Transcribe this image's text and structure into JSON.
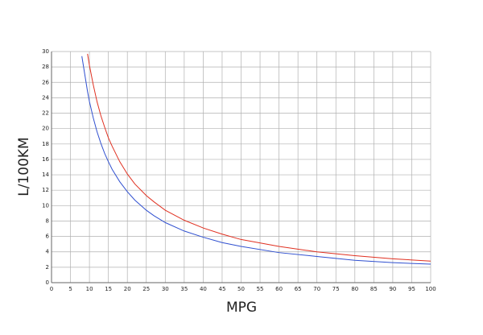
{
  "chart_data": {
    "type": "line",
    "xlabel": "MPG",
    "ylabel": "L/100KM",
    "x": [
      8,
      9.5,
      10,
      11,
      12,
      13,
      14,
      15,
      16,
      18,
      20,
      22,
      25,
      27,
      30,
      35,
      40,
      45,
      50,
      60,
      70,
      80,
      90,
      100
    ],
    "series": [
      {
        "color": "#3050d0",
        "values": [
          29.4,
          24.8,
          23.5,
          21.4,
          19.6,
          18.1,
          16.8,
          15.7,
          14.7,
          13.1,
          11.8,
          10.7,
          9.4,
          8.7,
          7.8,
          6.7,
          5.9,
          5.2,
          4.7,
          3.9,
          3.4,
          2.9,
          2.6,
          2.4
        ]
      },
      {
        "color": "#e03020",
        "values": [
          null,
          29.7,
          28.2,
          25.7,
          23.5,
          21.7,
          20.2,
          18.8,
          17.7,
          15.7,
          14.1,
          12.8,
          11.3,
          10.5,
          9.4,
          8.1,
          7.1,
          6.3,
          5.6,
          4.7,
          4.0,
          3.5,
          3.1,
          2.8
        ]
      }
    ],
    "xlim": [
      0,
      100
    ],
    "xticks": [
      0,
      5,
      10,
      15,
      20,
      25,
      30,
      35,
      40,
      45,
      50,
      55,
      60,
      65,
      70,
      75,
      80,
      85,
      90,
      95,
      100
    ],
    "ylim": [
      0,
      30
    ],
    "yticks": [
      0,
      2,
      4,
      6,
      8,
      10,
      12,
      14,
      16,
      18,
      20,
      22,
      24,
      26,
      28,
      30
    ],
    "grid": true
  }
}
